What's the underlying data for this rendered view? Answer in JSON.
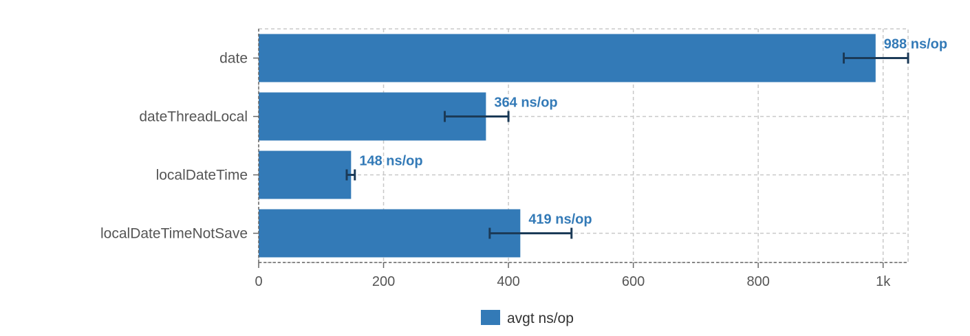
{
  "chart_data": {
    "type": "bar",
    "orientation": "horizontal",
    "categories": [
      "date",
      "dateThreadLocal",
      "localDateTime",
      "localDateTimeNotSave"
    ],
    "series": [
      {
        "name": "avgt ns/op",
        "values": [
          988,
          364,
          148,
          419
        ],
        "error_low": [
          937,
          298,
          141,
          370
        ],
        "error_high": [
          1040,
          400,
          154,
          501
        ],
        "labels": [
          "988 ns/op",
          "364 ns/op",
          "148 ns/op",
          "419 ns/op"
        ]
      }
    ],
    "xlim": [
      0,
      1040
    ],
    "xticks": [
      0,
      200,
      400,
      600,
      800,
      1000
    ],
    "xtick_labels": [
      "0",
      "200",
      "400",
      "600",
      "800",
      "1k"
    ],
    "grid": true,
    "legend": "bottom",
    "colors": {
      "bar": "#337ab7",
      "error_bar": "#1b3a57",
      "label": "#337ab7"
    }
  }
}
